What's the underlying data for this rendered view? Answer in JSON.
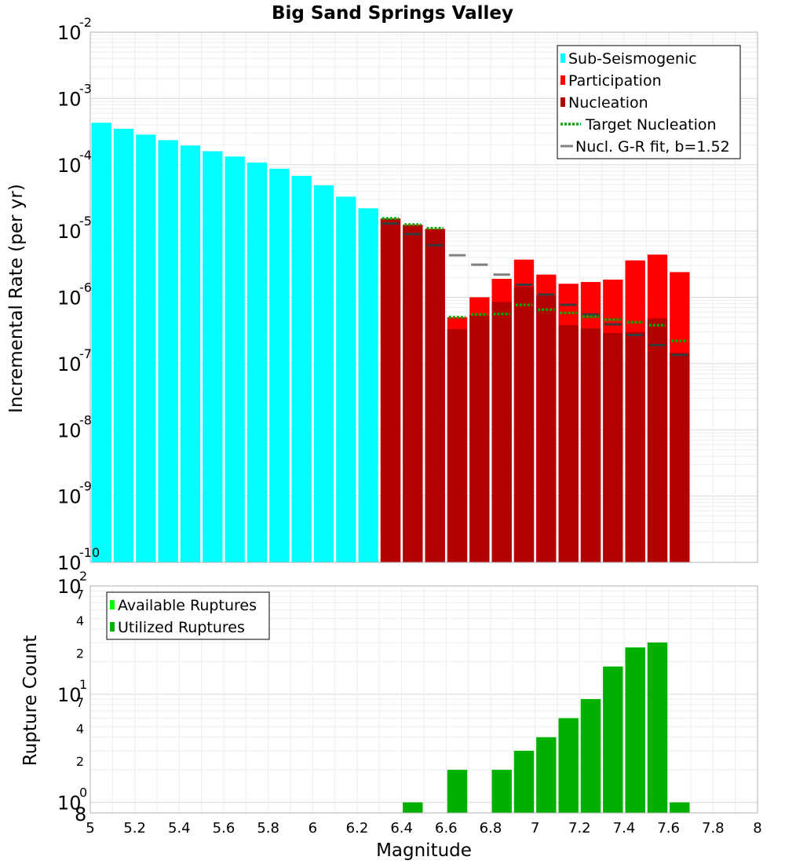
{
  "chart_data": [
    {
      "type": "bar",
      "title": "Big Sand Springs Valley",
      "xlabel": "",
      "ylabel": "Incremental Rate (per yr)",
      "yscale": "log",
      "ylim": [
        1e-10,
        0.01
      ],
      "xlim": [
        5,
        8
      ],
      "ytick_labels": [
        {
          "base": "10",
          "exp": "-10"
        },
        {
          "base": "10",
          "exp": "-9"
        },
        {
          "base": "10",
          "exp": "-8"
        },
        {
          "base": "10",
          "exp": "-7"
        },
        {
          "base": "10",
          "exp": "-6"
        },
        {
          "base": "10",
          "exp": "-5"
        },
        {
          "base": "10",
          "exp": "-4"
        },
        {
          "base": "10",
          "exp": "-3"
        },
        {
          "base": "10",
          "exp": "-2"
        }
      ],
      "legend_position": "top-right",
      "legend": [
        "Sub-Seismogenic",
        "Participation",
        "Nucleation",
        "Target Nucleation",
        "Nucl. G-R fit, b=1.52"
      ],
      "series": [
        {
          "name": "Sub-Seismogenic",
          "color": "#00ffff",
          "x": [
            5.05,
            5.15,
            5.25,
            5.35,
            5.45,
            5.55,
            5.65,
            5.75,
            5.85,
            5.95,
            6.05,
            6.15,
            6.25
          ],
          "values": [
            0.00043,
            0.00035,
            0.000285,
            0.000235,
            0.000195,
            0.00016,
            0.000133,
            0.000108,
            8.7e-05,
            6.8e-05,
            4.9e-05,
            3.3e-05,
            2.2e-05
          ]
        },
        {
          "name": "Participation",
          "color": "#ff0000",
          "x": [
            6.35,
            6.45,
            6.55,
            6.65,
            6.75,
            6.85,
            6.95,
            7.05,
            7.15,
            7.25,
            7.35,
            7.45,
            7.55,
            7.65
          ],
          "values": [
            1.55e-05,
            1.25e-05,
            1.08e-05,
            5e-07,
            1e-06,
            1.9e-06,
            3.7e-06,
            2.2e-06,
            1.6e-06,
            1.7e-06,
            1.85e-06,
            3.6e-06,
            4.4e-06,
            2.4e-06
          ]
        },
        {
          "name": "Nucleation",
          "color": "#b30000",
          "x": [
            6.35,
            6.45,
            6.55,
            6.65,
            6.75,
            6.85,
            6.95,
            7.05,
            7.15,
            7.25,
            7.35,
            7.45,
            7.55,
            7.65
          ],
          "values": [
            1.5e-05,
            1.2e-05,
            1.05e-05,
            3.3e-07,
            5.4e-07,
            8.5e-07,
            1.45e-06,
            1.05e-06,
            3.8e-07,
            3.4e-07,
            2.9e-07,
            3e-07,
            4.8e-07,
            1.45e-07
          ]
        },
        {
          "name": "Target Nucleation",
          "color": "#00aa00",
          "style": "dotted",
          "x": [
            6.35,
            6.45,
            6.55,
            6.65,
            6.75,
            6.85,
            6.95,
            7.05,
            7.15,
            7.25,
            7.35,
            7.45,
            7.55,
            7.65
          ],
          "values": [
            1.55e-05,
            1.25e-05,
            1.1e-05,
            5e-07,
            5.5e-07,
            5.6e-07,
            7.7e-07,
            6.5e-07,
            5.8e-07,
            5.1e-07,
            4.6e-07,
            4.2e-07,
            3.8e-07,
            2.2e-07
          ]
        },
        {
          "name": "Nucl. G-R fit, b=1.52",
          "color": "#808080",
          "x": [
            6.35,
            6.45,
            6.55,
            6.65,
            6.75,
            6.85,
            6.95,
            7.05,
            7.15,
            7.25,
            7.35,
            7.45,
            7.55,
            7.65
          ],
          "values": [
            1.3e-05,
            9e-06,
            6.1e-06,
            4.3e-06,
            3.1e-06,
            2.2e-06,
            1.55e-06,
            1.1e-06,
            7.7e-07,
            5.5e-07,
            3.9e-07,
            2.7e-07,
            1.9e-07,
            1.35e-07
          ]
        }
      ]
    },
    {
      "type": "bar",
      "xlabel": "Magnitude",
      "ylabel": "Rupture Count",
      "yscale": "log",
      "ylim": [
        0.8,
        100
      ],
      "xlim": [
        5,
        8
      ],
      "xtick_labels": [
        "5",
        "5.2",
        "5.4",
        "5.6",
        "5.8",
        "6",
        "6.2",
        "6.4",
        "6.6",
        "6.8",
        "7",
        "7.2",
        "7.4",
        "7.6",
        "7.8",
        "8"
      ],
      "ytick_labels": [
        {
          "value": 1,
          "base": "10",
          "exp": "0"
        },
        {
          "value": 2,
          "label": "2"
        },
        {
          "value": 4,
          "label": "4"
        },
        {
          "value": 7,
          "label": "7"
        },
        {
          "value": 10,
          "base": "10",
          "exp": "1"
        },
        {
          "value": 20,
          "label": "2"
        },
        {
          "value": 40,
          "label": "4"
        },
        {
          "value": 70,
          "label": "7"
        },
        {
          "value": 100,
          "base": "10",
          "exp": "2"
        }
      ],
      "bottom_label": "8",
      "legend_position": "top-left",
      "legend": [
        "Available Ruptures",
        "Utilized Ruptures"
      ],
      "series": [
        {
          "name": "Available Ruptures",
          "color": "#00ff00",
          "x": [
            6.45,
            6.65,
            6.85,
            6.95,
            7.05,
            7.15,
            7.25,
            7.35,
            7.45,
            7.55,
            7.65
          ],
          "values": [
            1,
            2,
            2,
            3,
            4,
            6,
            9,
            18,
            27,
            30,
            1
          ]
        },
        {
          "name": "Utilized Ruptures",
          "color": "#00b000",
          "x": [
            6.45,
            6.65,
            6.85,
            6.95,
            7.05,
            7.15,
            7.25,
            7.35,
            7.45,
            7.55,
            7.65
          ],
          "values": [
            1,
            2,
            2,
            3,
            4,
            6,
            9,
            18,
            27,
            30,
            1
          ]
        }
      ]
    }
  ]
}
